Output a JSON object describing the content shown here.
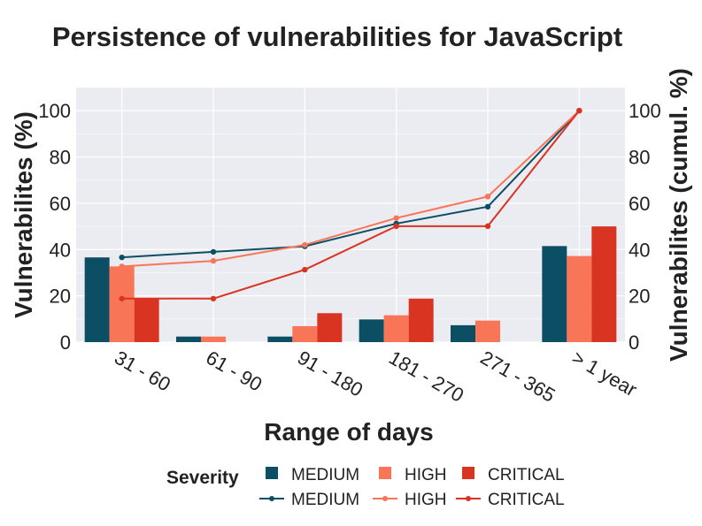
{
  "chart_data": {
    "type": "bar",
    "title": "Persistence of vulnerabilities for JavaScript",
    "xlabel": "Range of days",
    "ylabel": "Vulnerabilites (%)",
    "y2label": "Vulnerabilites (cumul. %)",
    "categories": [
      "31 - 60",
      "61 - 90",
      "91 - 180",
      "181 - 270",
      "271 - 365",
      "> 1 year"
    ],
    "ylim": [
      0,
      110
    ],
    "y2lim": [
      0,
      110
    ],
    "yticks": [
      0,
      20,
      40,
      60,
      80,
      100
    ],
    "grid": true,
    "legend_title": "Severity",
    "legend_position": "bottom",
    "bar_series": [
      {
        "name": "MEDIUM",
        "color": "#0c4e63",
        "values": [
          36.6,
          2.4,
          2.4,
          9.8,
          7.3,
          41.5
        ]
      },
      {
        "name": "HIGH",
        "color": "#f87558",
        "values": [
          32.7,
          2.4,
          6.9,
          11.6,
          9.3,
          37.2
        ]
      },
      {
        "name": "CRITICAL",
        "color": "#d93321",
        "values": [
          18.8,
          0,
          12.5,
          18.8,
          0,
          50.0
        ]
      }
    ],
    "line_series": [
      {
        "name": "MEDIUM",
        "color": "#0c4e63",
        "values": [
          36.6,
          39.0,
          41.4,
          51.2,
          58.5,
          100
        ]
      },
      {
        "name": "HIGH",
        "color": "#f87558",
        "values": [
          32.7,
          35.1,
          42.0,
          53.6,
          62.9,
          100
        ]
      },
      {
        "name": "CRITICAL",
        "color": "#d93321",
        "values": [
          18.8,
          18.8,
          31.3,
          50.1,
          50.1,
          100
        ]
      }
    ]
  }
}
